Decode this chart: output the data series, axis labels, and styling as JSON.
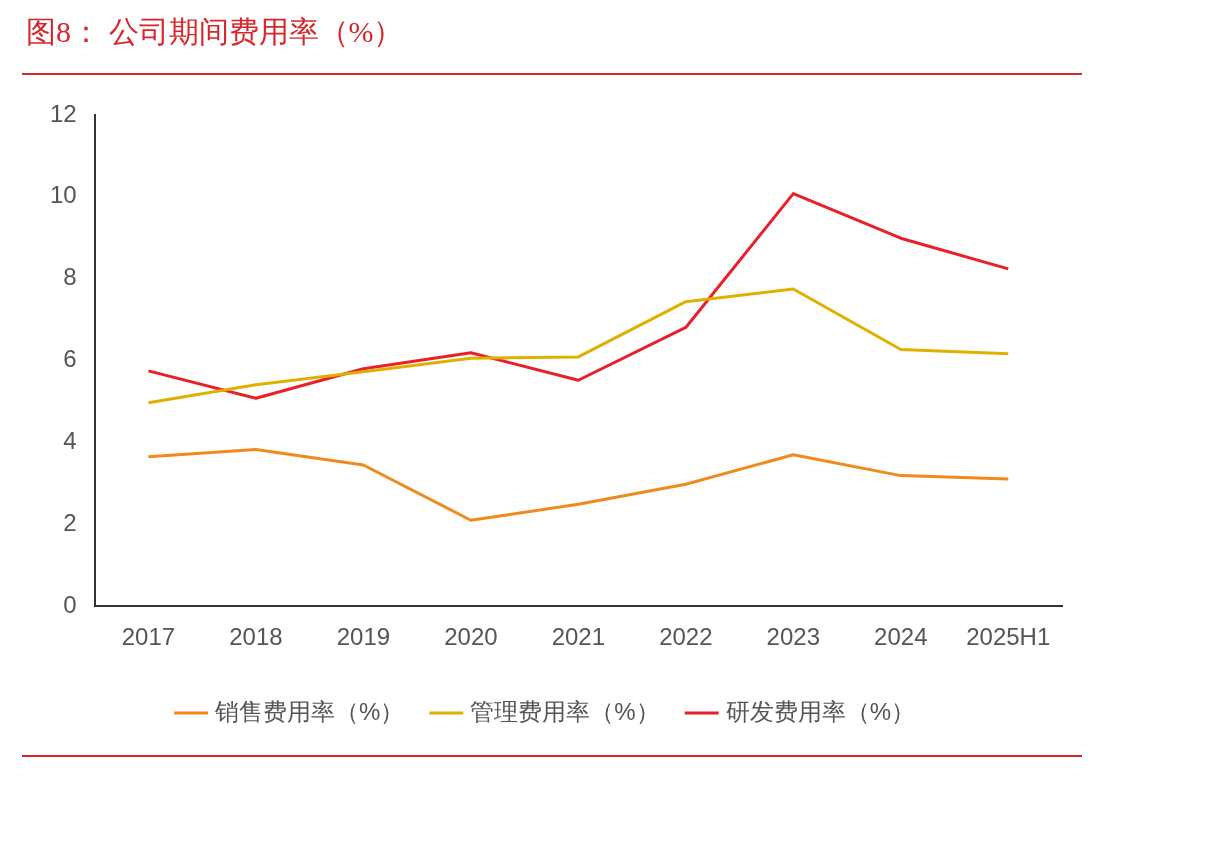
{
  "chart_data": {
    "type": "line",
    "title": "图8： 公司期间费用率（%）",
    "categories": [
      "2017",
      "2018",
      "2019",
      "2020",
      "2021",
      "2022",
      "2023",
      "2024",
      "2025H1"
    ],
    "series": [
      {
        "name": "销售费用率（%）",
        "color": "#f08a1e",
        "values": [
          3.65,
          3.83,
          3.45,
          2.1,
          2.49,
          2.98,
          3.7,
          3.19,
          3.11
        ]
      },
      {
        "name": "管理费用率（%）",
        "color": "#e0b000",
        "values": [
          4.97,
          5.41,
          5.73,
          6.06,
          6.09,
          7.44,
          7.75,
          6.27,
          6.17
        ]
      },
      {
        "name": "研发费用率（%）",
        "color": "#e8202a",
        "values": [
          5.75,
          5.08,
          5.8,
          6.19,
          5.52,
          6.81,
          10.08,
          8.99,
          8.24
        ]
      }
    ],
    "ylim": [
      0,
      12
    ],
    "yticks": [
      0,
      2,
      4,
      6,
      8,
      10,
      12
    ],
    "grid": false,
    "legend": "bottom",
    "marker": "none",
    "line_style": "solid"
  }
}
